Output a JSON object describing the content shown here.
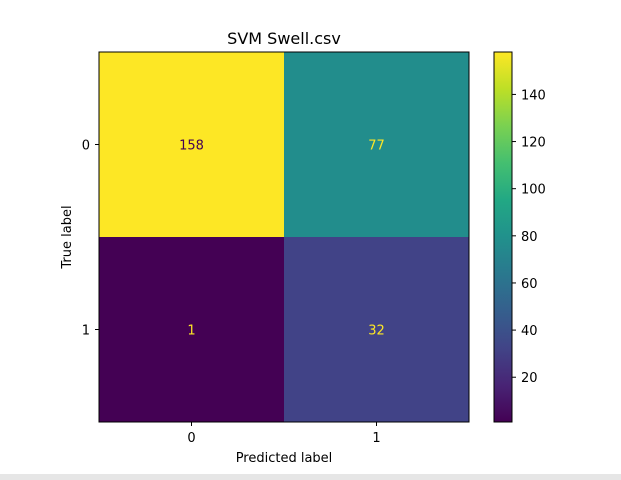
{
  "chart_data": {
    "type": "heatmap",
    "title": "SVM Swell.csv",
    "xlabel": "Predicted label",
    "ylabel": "True label",
    "x_categories": [
      "0",
      "1"
    ],
    "y_categories": [
      "0",
      "1"
    ],
    "matrix": [
      [
        158,
        77
      ],
      [
        1,
        32
      ]
    ],
    "colormap": "viridis",
    "colorbar": {
      "min": 1,
      "max": 158,
      "ticks": [
        20,
        40,
        60,
        80,
        100,
        120,
        140
      ]
    },
    "text_colors": {
      "on_light": "#440154",
      "on_dark": "#fde725"
    },
    "grid": false
  }
}
